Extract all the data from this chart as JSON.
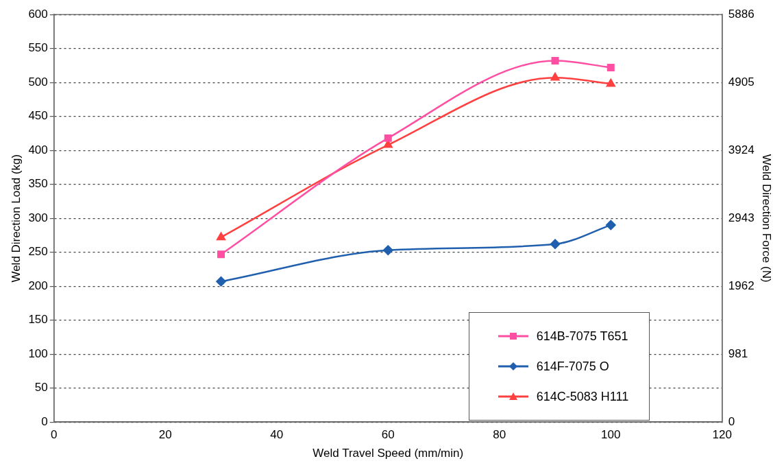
{
  "chart_data": {
    "type": "line",
    "xlabel": "Weld Travel Speed (mm/min)",
    "ylabel": "Weld Direction Load (kg)",
    "y2label": "Weld Direction Force (N)",
    "xlim": [
      0,
      120
    ],
    "xticks": [
      0,
      20,
      40,
      60,
      80,
      100,
      120
    ],
    "ylim": [
      0,
      600
    ],
    "yticks": [
      0,
      50,
      100,
      150,
      200,
      250,
      300,
      350,
      400,
      450,
      500,
      550,
      600
    ],
    "y2lim": [
      0,
      5886
    ],
    "y2ticks": [
      0,
      981,
      1962,
      2943,
      3924,
      4905,
      5886
    ],
    "grid": "y",
    "legend": "bottom right",
    "x": [
      30,
      60,
      90,
      100
    ],
    "series": [
      {
        "name": "614B-7075 T651",
        "color": "#ff4fa3",
        "marker": "square",
        "values": [
          247,
          418,
          532,
          522
        ]
      },
      {
        "name": "614F-7075 O",
        "color": "#1f5fae",
        "marker": "diamond",
        "values": [
          207,
          253,
          262,
          290
        ]
      },
      {
        "name": "614C-5083 H111",
        "color": "#ff4040",
        "marker": "triangle",
        "values": [
          272,
          408,
          507,
          498
        ]
      }
    ]
  }
}
